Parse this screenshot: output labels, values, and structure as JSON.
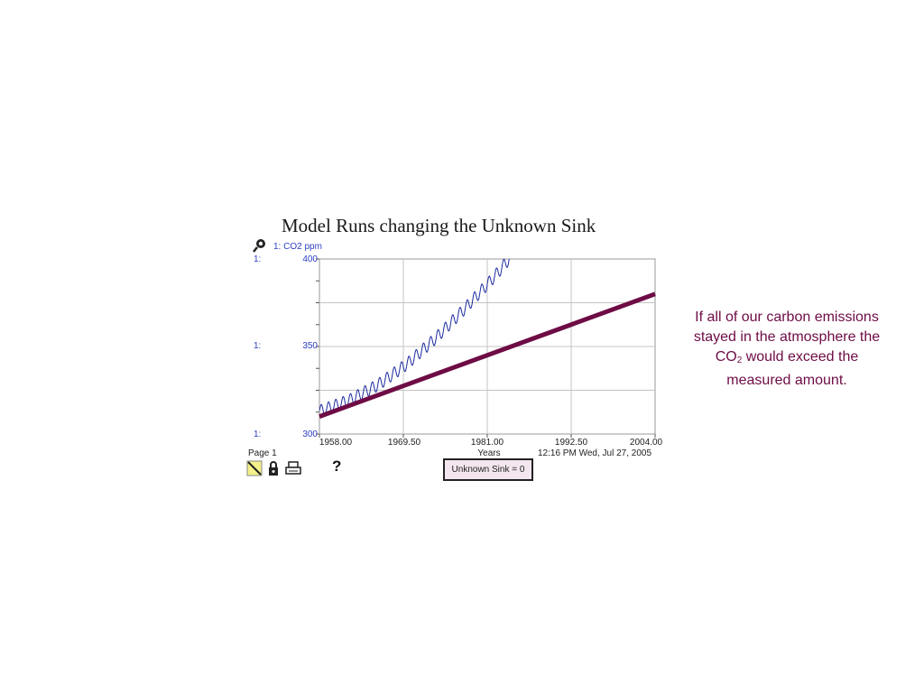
{
  "chart_data": {
    "type": "line",
    "title": "Model Runs changing the Unknown Sink",
    "series_label": "1: CO2 ppm",
    "xlabel": "Years",
    "ylabel": "",
    "xlim": [
      1958.0,
      2004.0
    ],
    "ylim": [
      300,
      400
    ],
    "x_ticks": [
      "1958.00",
      "1969.50",
      "1981.00",
      "1992.50",
      "2004.00"
    ],
    "y_ticks": [
      "400",
      "350",
      "300"
    ],
    "y_prefix": "1:",
    "grid": true,
    "series": [
      {
        "style": "thin oscillating",
        "color": "#1b2a9e",
        "x": [
          1958.0,
          1962.0,
          1966.0,
          1970.0,
          1974.0,
          1978.0,
          1982.0,
          1984.0
        ],
        "values": [
          313,
          319,
          328,
          340,
          355,
          372,
          390,
          400
        ],
        "seasonal_amplitude": 3.5,
        "cycles_per_year": 1
      },
      {
        "style": "thick",
        "color": "#6e0c45",
        "x": [
          1958.0,
          2004.0
        ],
        "values": [
          310,
          380
        ]
      }
    ]
  },
  "page_label": "Page 1",
  "timestamp": "12:16 PM   Wed, Jul 27, 2005",
  "help_label": "?",
  "sink_label": "Unknown Sink = 0",
  "annotation": {
    "line1": "If all of our carbon emissions",
    "line2": "stayed in the atmosphere the",
    "co2_main": "CO",
    "co2_sub": "2",
    "line3_rest": " would exceed the",
    "line4": "measured amount."
  },
  "icons": [
    "magnifier-icon",
    "pencil-icon",
    "lock-icon",
    "printer-icon"
  ]
}
